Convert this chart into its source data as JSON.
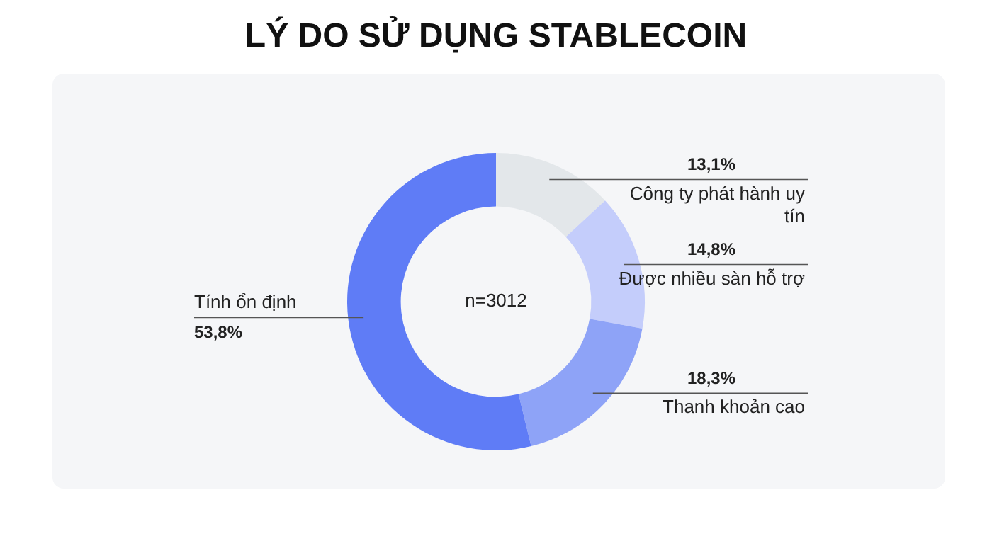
{
  "chart_data": {
    "type": "donut",
    "title": "LÝ DO SỬ DỤNG STABLECOIN",
    "categories": [
      "Công ty phát hành uy tín",
      "Được nhiều sàn hỗ trợ",
      "Thanh khoản cao",
      "Tính ổn định"
    ],
    "values": [
      13.1,
      14.8,
      18.3,
      53.8
    ],
    "colors": [
      "#e3e7ea",
      "#c4cdfb",
      "#8ea3f7",
      "#5f7cf6"
    ],
    "value_labels": [
      "13,1%",
      "14,8%",
      "18,3%",
      "53,8%"
    ],
    "annotations": [
      "n=3012"
    ]
  }
}
